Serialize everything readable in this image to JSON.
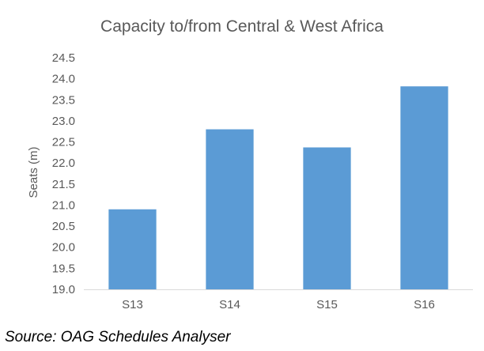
{
  "chart_data": {
    "type": "bar",
    "title": "Capacity to/from Central & West Africa",
    "xlabel": "",
    "ylabel": "Seats (m)",
    "categories": [
      "S13",
      "S14",
      "S15",
      "S16"
    ],
    "values": [
      20.9,
      22.8,
      22.37,
      23.82
    ],
    "ylim": [
      19.0,
      24.5
    ],
    "yticks": [
      "19.0",
      "19.5",
      "20.0",
      "20.5",
      "21.0",
      "21.5",
      "22.0",
      "22.5",
      "23.0",
      "23.5",
      "24.0",
      "24.5"
    ],
    "bar_color": "#5b9bd5",
    "grid": false,
    "legend": "none"
  },
  "source_note": "Source: OAG Schedules Analyser"
}
